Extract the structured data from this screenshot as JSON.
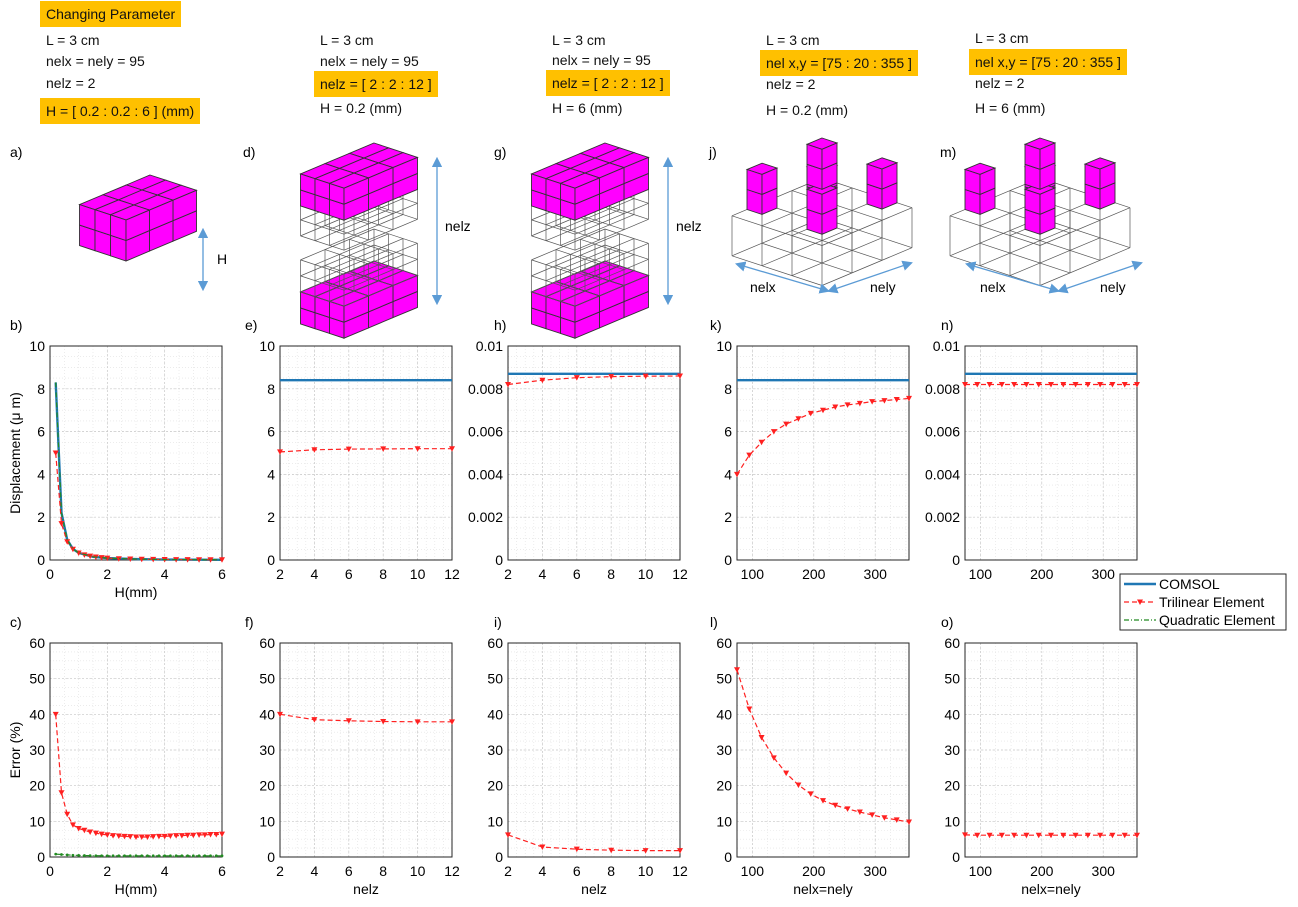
{
  "changing_parameter": "Changing Parameter",
  "columns": [
    {
      "lines": [
        "L = 3 cm",
        "nelx = nely =  95",
        "nelz = 2",
        "H = [ 0.2 : 0.2 : 6 ]  (mm)"
      ],
      "highlight": [
        3
      ]
    },
    {
      "lines": [
        "L = 3 cm",
        "nelx = nely =  95",
        "nelz = [ 2 : 2 : 12 ]",
        "H = 0.2 (mm)"
      ],
      "highlight": [
        2
      ]
    },
    {
      "lines": [
        "L = 3 cm",
        "nelx = nely =  95",
        "nelz = [ 2 : 2 : 12 ]",
        "H = 6 (mm)"
      ],
      "highlight": [
        2
      ]
    },
    {
      "lines": [
        "L = 3 cm",
        "nel x,y = [75 : 20 : 355 ]",
        "nelz = 2",
        "H = 0.2 (mm)"
      ],
      "highlight": [
        1
      ]
    },
    {
      "lines": [
        "L = 3 cm",
        "nel x,y = [75 : 20 : 355 ]",
        "nelz = 2",
        "H = 6 (mm)"
      ],
      "highlight": [
        1
      ]
    }
  ],
  "illustration": {
    "panel_letters": [
      "a)",
      "d)",
      "g)",
      "j)",
      "m)"
    ],
    "dim_H": "H",
    "dim_nelz": "nelz",
    "dim_nelx": "nelx",
    "dim_nely": "nely",
    "fill_color": "#ff00ff",
    "arrow_color": "#5b9bd5"
  },
  "legend": {
    "entries": [
      {
        "name": "COMSOL",
        "color": "#1f77b4",
        "style": "solid"
      },
      {
        "name": "Trilinear Element",
        "color": "#ff2020",
        "style": "dashed-triangle"
      },
      {
        "name": "Quadratic Element",
        "color": "#228b22",
        "style": "dashdot"
      }
    ]
  },
  "chart_data": [
    {
      "id": "b)",
      "type": "line",
      "xlabel": "H(mm)",
      "ylabel": "Displacement (μ m)",
      "xlim": [
        0,
        6
      ],
      "ylim": [
        0,
        10
      ],
      "xticks": [
        "0",
        "2",
        "4",
        "6"
      ],
      "yticks": [
        "0",
        "2",
        "4",
        "6",
        "8",
        "10"
      ],
      "series": [
        {
          "name": "COMSOL",
          "x": [
            0.2,
            0.4,
            0.6,
            0.8,
            1,
            1.5,
            2,
            3,
            4,
            5,
            6
          ],
          "y": [
            8.3,
            2.2,
            0.95,
            0.52,
            0.33,
            0.15,
            0.09,
            0.04,
            0.02,
            0.015,
            0.01
          ]
        },
        {
          "name": "Trilinear Element",
          "x": [
            0.2,
            0.4,
            0.6,
            0.8,
            1,
            1.2,
            1.4,
            1.6,
            1.8,
            2,
            2.4,
            2.8,
            3.2,
            3.6,
            4,
            4.4,
            4.8,
            5.2,
            5.6,
            6
          ],
          "y": [
            5.0,
            1.7,
            0.85,
            0.5,
            0.33,
            0.24,
            0.18,
            0.14,
            0.11,
            0.09,
            0.06,
            0.045,
            0.035,
            0.03,
            0.025,
            0.02,
            0.015,
            0.013,
            0.011,
            0.01
          ]
        },
        {
          "name": "Quadratic Element",
          "x": [
            0.2,
            0.4,
            0.6,
            0.8,
            1,
            1.5,
            2,
            3,
            4,
            5,
            6
          ],
          "y": [
            8.3,
            2.2,
            0.95,
            0.52,
            0.33,
            0.15,
            0.09,
            0.04,
            0.02,
            0.015,
            0.01
          ]
        }
      ]
    },
    {
      "id": "e)",
      "type": "line",
      "xlabel": "",
      "ylabel": "",
      "xlim": [
        2,
        12
      ],
      "ylim": [
        0,
        10
      ],
      "xticks": [
        "2",
        "4",
        "6",
        "8",
        "10",
        "12"
      ],
      "yticks": [
        "0",
        "2",
        "4",
        "6",
        "8",
        "10"
      ],
      "series": [
        {
          "name": "COMSOL",
          "x": [
            2,
            12
          ],
          "y": [
            8.4,
            8.4
          ]
        },
        {
          "name": "Trilinear Element",
          "x": [
            2,
            4,
            6,
            8,
            10,
            12
          ],
          "y": [
            5.05,
            5.15,
            5.18,
            5.19,
            5.2,
            5.2
          ]
        }
      ]
    },
    {
      "id": "h)",
      "type": "line",
      "xlabel": "",
      "ylabel": "",
      "xlim": [
        2,
        12
      ],
      "ylim": [
        0,
        0.01
      ],
      "xticks": [
        "2",
        "4",
        "6",
        "8",
        "10",
        "12"
      ],
      "yticks": [
        "0",
        "0.002",
        "0.004",
        "0.006",
        "0.008",
        "0.01"
      ],
      "series": [
        {
          "name": "COMSOL",
          "x": [
            2,
            12
          ],
          "y": [
            0.0087,
            0.0087
          ]
        },
        {
          "name": "Trilinear Element",
          "x": [
            2,
            4,
            6,
            8,
            10,
            12
          ],
          "y": [
            0.0082,
            0.0084,
            0.00852,
            0.00857,
            0.00859,
            0.0086
          ]
        }
      ]
    },
    {
      "id": "k)",
      "type": "line",
      "xlabel": "",
      "ylabel": "",
      "xlim": [
        75,
        355
      ],
      "ylim": [
        0,
        10
      ],
      "xticks": [
        "100",
        "200",
        "300"
      ],
      "yticks": [
        "0",
        "2",
        "4",
        "6",
        "8",
        "10"
      ],
      "series": [
        {
          "name": "COMSOL",
          "x": [
            75,
            355
          ],
          "y": [
            8.4,
            8.4
          ]
        },
        {
          "name": "Trilinear Element",
          "x": [
            75,
            95,
            115,
            135,
            155,
            175,
            195,
            215,
            235,
            255,
            275,
            295,
            315,
            335,
            355
          ],
          "y": [
            4.0,
            4.9,
            5.5,
            6.0,
            6.35,
            6.6,
            6.85,
            7.0,
            7.15,
            7.25,
            7.32,
            7.4,
            7.45,
            7.5,
            7.55
          ]
        }
      ]
    },
    {
      "id": "n)",
      "type": "line",
      "xlabel": "",
      "ylabel": "",
      "xlim": [
        75,
        355
      ],
      "ylim": [
        0,
        0.01
      ],
      "xticks": [
        "100",
        "200",
        "300"
      ],
      "yticks": [
        "0",
        "0.002",
        "0.004",
        "0.006",
        "0.008",
        "0.01"
      ],
      "series": [
        {
          "name": "COMSOL",
          "x": [
            75,
            355
          ],
          "y": [
            0.0087,
            0.0087
          ]
        },
        {
          "name": "Trilinear Element",
          "x": [
            75,
            95,
            115,
            135,
            155,
            175,
            195,
            215,
            235,
            255,
            275,
            295,
            315,
            335,
            355
          ],
          "y": [
            0.0082,
            0.0082,
            0.0082,
            0.0082,
            0.0082,
            0.0082,
            0.0082,
            0.0082,
            0.0082,
            0.0082,
            0.0082,
            0.0082,
            0.0082,
            0.0082,
            0.0082
          ]
        }
      ]
    },
    {
      "id": "c)",
      "type": "line",
      "xlabel": "H(mm)",
      "ylabel": "Error (%)",
      "xlim": [
        0,
        6
      ],
      "ylim": [
        0,
        60
      ],
      "xticks": [
        "0",
        "2",
        "4",
        "6"
      ],
      "yticks": [
        "0",
        "10",
        "20",
        "30",
        "40",
        "50",
        "60"
      ],
      "series": [
        {
          "name": "Trilinear Element",
          "x": [
            0.2,
            0.4,
            0.6,
            0.8,
            1,
            1.2,
            1.4,
            1.6,
            1.8,
            2,
            2.2,
            2.4,
            2.6,
            2.8,
            3,
            3.2,
            3.4,
            3.6,
            3.8,
            4,
            4.2,
            4.4,
            4.6,
            4.8,
            5,
            5.2,
            5.4,
            5.6,
            5.8,
            6
          ],
          "y": [
            40,
            18,
            12,
            9,
            8,
            7.5,
            7,
            6.7,
            6.4,
            6.2,
            6,
            5.9,
            5.8,
            5.7,
            5.6,
            5.6,
            5.6,
            5.7,
            5.8,
            5.8,
            5.9,
            6,
            6,
            6.1,
            6.1,
            6.2,
            6.2,
            6.3,
            6.3,
            6.4
          ]
        },
        {
          "name": "Quadratic Element",
          "x": [
            0.2,
            0.4,
            0.6,
            0.8,
            1,
            1.2,
            1.4,
            1.6,
            1.8,
            2,
            2.2,
            2.4,
            2.6,
            2.8,
            3,
            3.2,
            3.4,
            3.6,
            3.8,
            4,
            4.2,
            4.4,
            4.6,
            4.8,
            5,
            5.2,
            5.4,
            5.6,
            5.8,
            6
          ],
          "y": [
            0.8,
            0.7,
            0.6,
            0.5,
            0.45,
            0.4,
            0.38,
            0.36,
            0.35,
            0.34,
            0.34,
            0.33,
            0.33,
            0.33,
            0.33,
            0.33,
            0.33,
            0.33,
            0.33,
            0.33,
            0.33,
            0.33,
            0.33,
            0.33,
            0.33,
            0.33,
            0.33,
            0.33,
            0.33,
            0.33
          ]
        }
      ]
    },
    {
      "id": "f)",
      "type": "line",
      "xlabel": "nelz",
      "ylabel": "",
      "xlim": [
        2,
        12
      ],
      "ylim": [
        0,
        60
      ],
      "xticks": [
        "2",
        "4",
        "6",
        "8",
        "10",
        "12"
      ],
      "yticks": [
        "0",
        "10",
        "20",
        "30",
        "40",
        "50",
        "60"
      ],
      "series": [
        {
          "name": "Trilinear Element",
          "x": [
            2,
            4,
            6,
            8,
            10,
            12
          ],
          "y": [
            40,
            38.5,
            38.2,
            38,
            37.9,
            37.9
          ]
        }
      ]
    },
    {
      "id": "i)",
      "type": "line",
      "xlabel": "nelz",
      "ylabel": "",
      "xlim": [
        2,
        12
      ],
      "ylim": [
        0,
        60
      ],
      "xticks": [
        "2",
        "4",
        "6",
        "8",
        "10",
        "12"
      ],
      "yticks": [
        "0",
        "10",
        "20",
        "30",
        "40",
        "50",
        "60"
      ],
      "series": [
        {
          "name": "Trilinear Element",
          "x": [
            2,
            4,
            6,
            8,
            10,
            12
          ],
          "y": [
            6.2,
            2.8,
            2.2,
            1.9,
            1.8,
            1.8
          ]
        }
      ]
    },
    {
      "id": "l)",
      "type": "line",
      "xlabel": "nelx=nely",
      "ylabel": "",
      "xlim": [
        75,
        355
      ],
      "ylim": [
        0,
        60
      ],
      "xticks": [
        "100",
        "200",
        "300"
      ],
      "yticks": [
        "0",
        "10",
        "20",
        "30",
        "40",
        "50",
        "60"
      ],
      "series": [
        {
          "name": "Trilinear Element",
          "x": [
            75,
            95,
            115,
            135,
            155,
            175,
            195,
            215,
            235,
            255,
            275,
            295,
            315,
            335,
            355
          ],
          "y": [
            52.5,
            41.5,
            33.5,
            27.8,
            23.5,
            20.2,
            17.7,
            15.8,
            14.5,
            13.5,
            12.6,
            11.8,
            11.0,
            10.4,
            9.8
          ]
        }
      ]
    },
    {
      "id": "o)",
      "type": "line",
      "xlabel": "nelx=nely",
      "ylabel": "",
      "xlim": [
        75,
        355
      ],
      "ylim": [
        0,
        60
      ],
      "xticks": [
        "100",
        "200",
        "300"
      ],
      "yticks": [
        "0",
        "10",
        "20",
        "30",
        "40",
        "50",
        "60"
      ],
      "series": [
        {
          "name": "Trilinear Element",
          "x": [
            75,
            95,
            115,
            135,
            155,
            175,
            195,
            215,
            235,
            255,
            275,
            295,
            315,
            335,
            355
          ],
          "y": [
            6.2,
            6.1,
            6.1,
            6.1,
            6.1,
            6.1,
            6.1,
            6.1,
            6.1,
            6.1,
            6.1,
            6.1,
            6.1,
            6.1,
            6.1
          ]
        }
      ]
    }
  ]
}
